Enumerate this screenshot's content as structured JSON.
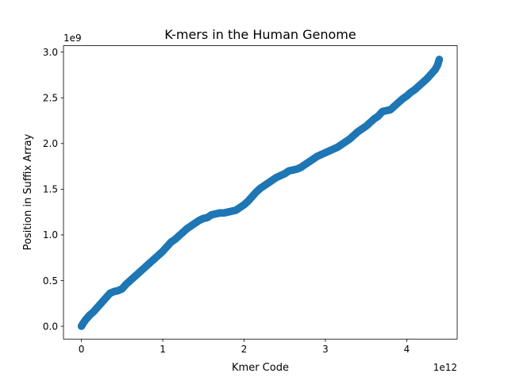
{
  "chart_data": {
    "type": "scatter",
    "title": "K-mers in the Human Genome",
    "xlabel": "Kmer Code",
    "ylabel": "Position in Suffix Array",
    "x_multiplier_label": "1e12",
    "y_multiplier_label": "1e9",
    "xlim": [
      -0.22,
      4.62
    ],
    "ylim": [
      -0.14,
      3.07
    ],
    "x_ticks": [
      0,
      1,
      2,
      3,
      4
    ],
    "x_tick_labels": [
      "0",
      "1",
      "2",
      "3",
      "4"
    ],
    "y_ticks": [
      0.0,
      0.5,
      1.0,
      1.5,
      2.0,
      2.5,
      3.0
    ],
    "y_tick_labels": [
      "0.0",
      "0.5",
      "1.0",
      "1.5",
      "2.0",
      "2.5",
      "3.0"
    ],
    "grid": false,
    "legend": "none",
    "marker_color": "#1f77b4",
    "series": [
      {
        "x": [
          0.0,
          0.02,
          0.05,
          0.08,
          0.1,
          0.15,
          0.2,
          0.25,
          0.3,
          0.35,
          0.4,
          0.45,
          0.5,
          0.55,
          0.6,
          0.65,
          0.7,
          0.75,
          0.8,
          0.85,
          0.9,
          0.95,
          1.0,
          1.05,
          1.1,
          1.15,
          1.2,
          1.25,
          1.3,
          1.35,
          1.4,
          1.45,
          1.5,
          1.55,
          1.6,
          1.65,
          1.7,
          1.75,
          1.8,
          1.85,
          1.9,
          1.95,
          2.0,
          2.05,
          2.1,
          2.15,
          2.2,
          2.25,
          2.3,
          2.35,
          2.4,
          2.45,
          2.5,
          2.55,
          2.6,
          2.65,
          2.7,
          2.75,
          2.8,
          2.85,
          2.9,
          2.95,
          3.0,
          3.05,
          3.1,
          3.15,
          3.2,
          3.25,
          3.3,
          3.35,
          3.4,
          3.45,
          3.5,
          3.55,
          3.6,
          3.65,
          3.7,
          3.75,
          3.8,
          3.85,
          3.9,
          3.95,
          4.0,
          4.05,
          4.1,
          4.15,
          4.2,
          4.25,
          4.3,
          4.35,
          4.38,
          4.4
        ],
        "y": [
          0.0,
          0.03,
          0.07,
          0.1,
          0.12,
          0.16,
          0.21,
          0.26,
          0.31,
          0.36,
          0.38,
          0.39,
          0.41,
          0.46,
          0.5,
          0.54,
          0.58,
          0.62,
          0.66,
          0.7,
          0.74,
          0.78,
          0.82,
          0.87,
          0.92,
          0.95,
          0.99,
          1.03,
          1.07,
          1.1,
          1.13,
          1.16,
          1.18,
          1.19,
          1.22,
          1.23,
          1.24,
          1.24,
          1.25,
          1.26,
          1.27,
          1.3,
          1.33,
          1.37,
          1.42,
          1.47,
          1.51,
          1.54,
          1.57,
          1.6,
          1.63,
          1.65,
          1.67,
          1.7,
          1.71,
          1.72,
          1.74,
          1.77,
          1.8,
          1.83,
          1.86,
          1.88,
          1.9,
          1.92,
          1.94,
          1.96,
          1.99,
          2.02,
          2.05,
          2.09,
          2.13,
          2.16,
          2.19,
          2.23,
          2.27,
          2.3,
          2.35,
          2.36,
          2.37,
          2.41,
          2.45,
          2.49,
          2.52,
          2.56,
          2.59,
          2.63,
          2.67,
          2.71,
          2.76,
          2.81,
          2.86,
          2.92
        ]
      }
    ]
  }
}
